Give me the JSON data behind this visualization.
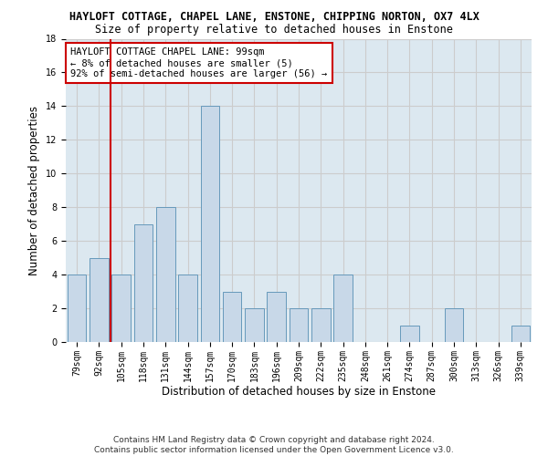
{
  "title": "HAYLOFT COTTAGE, CHAPEL LANE, ENSTONE, CHIPPING NORTON, OX7 4LX",
  "subtitle": "Size of property relative to detached houses in Enstone",
  "xlabel": "Distribution of detached houses by size in Enstone",
  "ylabel": "Number of detached properties",
  "categories": [
    "79sqm",
    "92sqm",
    "105sqm",
    "118sqm",
    "131sqm",
    "144sqm",
    "157sqm",
    "170sqm",
    "183sqm",
    "196sqm",
    "209sqm",
    "222sqm",
    "235sqm",
    "248sqm",
    "261sqm",
    "274sqm",
    "287sqm",
    "300sqm",
    "313sqm",
    "326sqm",
    "339sqm"
  ],
  "values": [
    4,
    5,
    4,
    7,
    8,
    4,
    14,
    3,
    2,
    3,
    2,
    2,
    4,
    0,
    0,
    1,
    0,
    2,
    0,
    0,
    1
  ],
  "bar_color": "#c8d8e8",
  "bar_edge_color": "#6699bb",
  "vline_x": 1.5,
  "vline_color": "#cc0000",
  "annotation_text": "HAYLOFT COTTAGE CHAPEL LANE: 99sqm\n← 8% of detached houses are smaller (5)\n92% of semi-detached houses are larger (56) →",
  "annotation_box_color": "#ffffff",
  "annotation_box_edge_color": "#cc0000",
  "ylim": [
    0,
    18
  ],
  "yticks": [
    0,
    2,
    4,
    6,
    8,
    10,
    12,
    14,
    16,
    18
  ],
  "grid_color": "#cccccc",
  "bg_color": "#dce8f0",
  "footer_text": "Contains HM Land Registry data © Crown copyright and database right 2024.\nContains public sector information licensed under the Open Government Licence v3.0.",
  "title_fontsize": 8.5,
  "subtitle_fontsize": 8.5,
  "ylabel_fontsize": 8.5,
  "xlabel_fontsize": 8.5,
  "tick_fontsize": 7,
  "annotation_fontsize": 7.5,
  "footer_fontsize": 6.5
}
